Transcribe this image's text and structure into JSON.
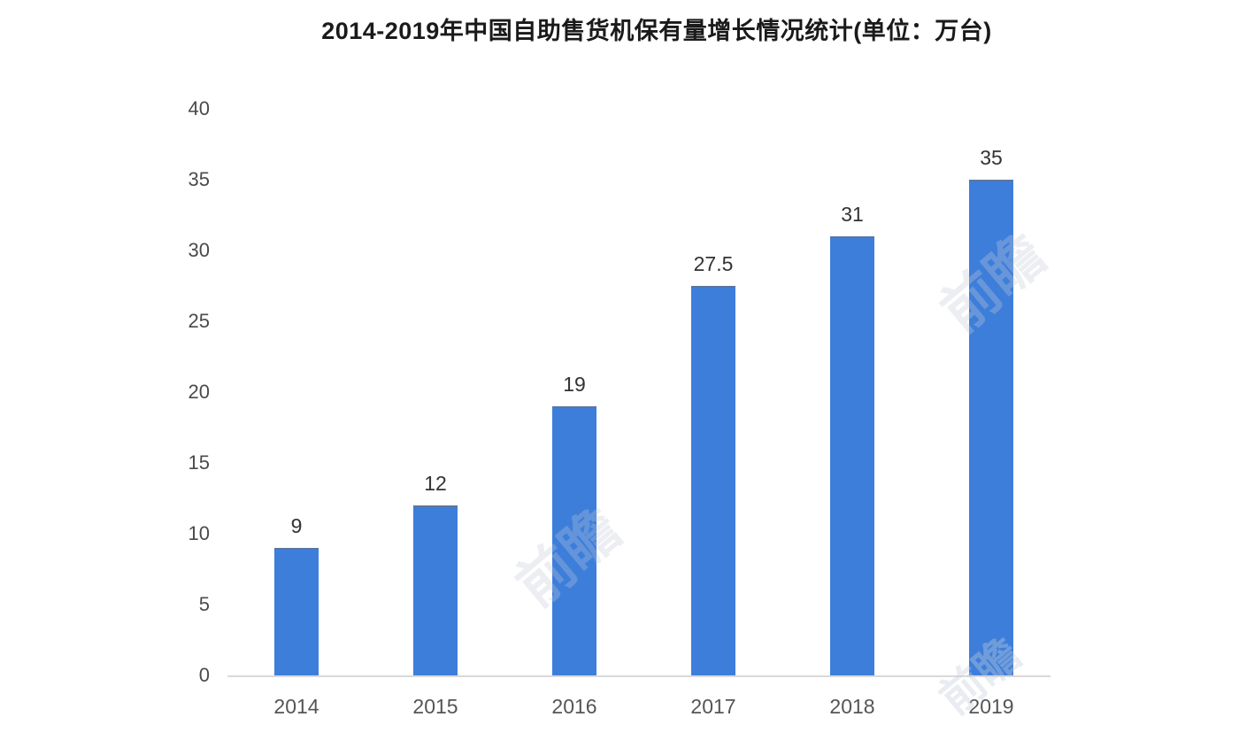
{
  "page": {
    "background_color": "#ffffff"
  },
  "chart_data": {
    "type": "bar",
    "title": "2014-2019年中国自助售货机保有量增长情况统计(单位：万台)",
    "categories": [
      "2014",
      "2015",
      "2016",
      "2017",
      "2018",
      "2019"
    ],
    "values": [
      9,
      12,
      19,
      27.5,
      31,
      35
    ],
    "data_labels": [
      "9",
      "12",
      "19",
      "27.5",
      "31",
      "35"
    ],
    "xlabel": "",
    "ylabel": "",
    "y_ticks": [
      0,
      5,
      10,
      15,
      20,
      25,
      30,
      35,
      40
    ],
    "ylim": [
      0,
      40
    ],
    "grid": false,
    "legend_position": "none",
    "colors": {
      "bar_fill": "#3d7edb",
      "bar_top_edge": "#5b75a0",
      "axis_line": "#d9d9d9",
      "y_tick_label": "#4a4a4a",
      "x_tick_label": "#555555",
      "data_label": "#333333",
      "title": "#1a1a1a"
    }
  },
  "watermark": {
    "text": "前瞻"
  }
}
